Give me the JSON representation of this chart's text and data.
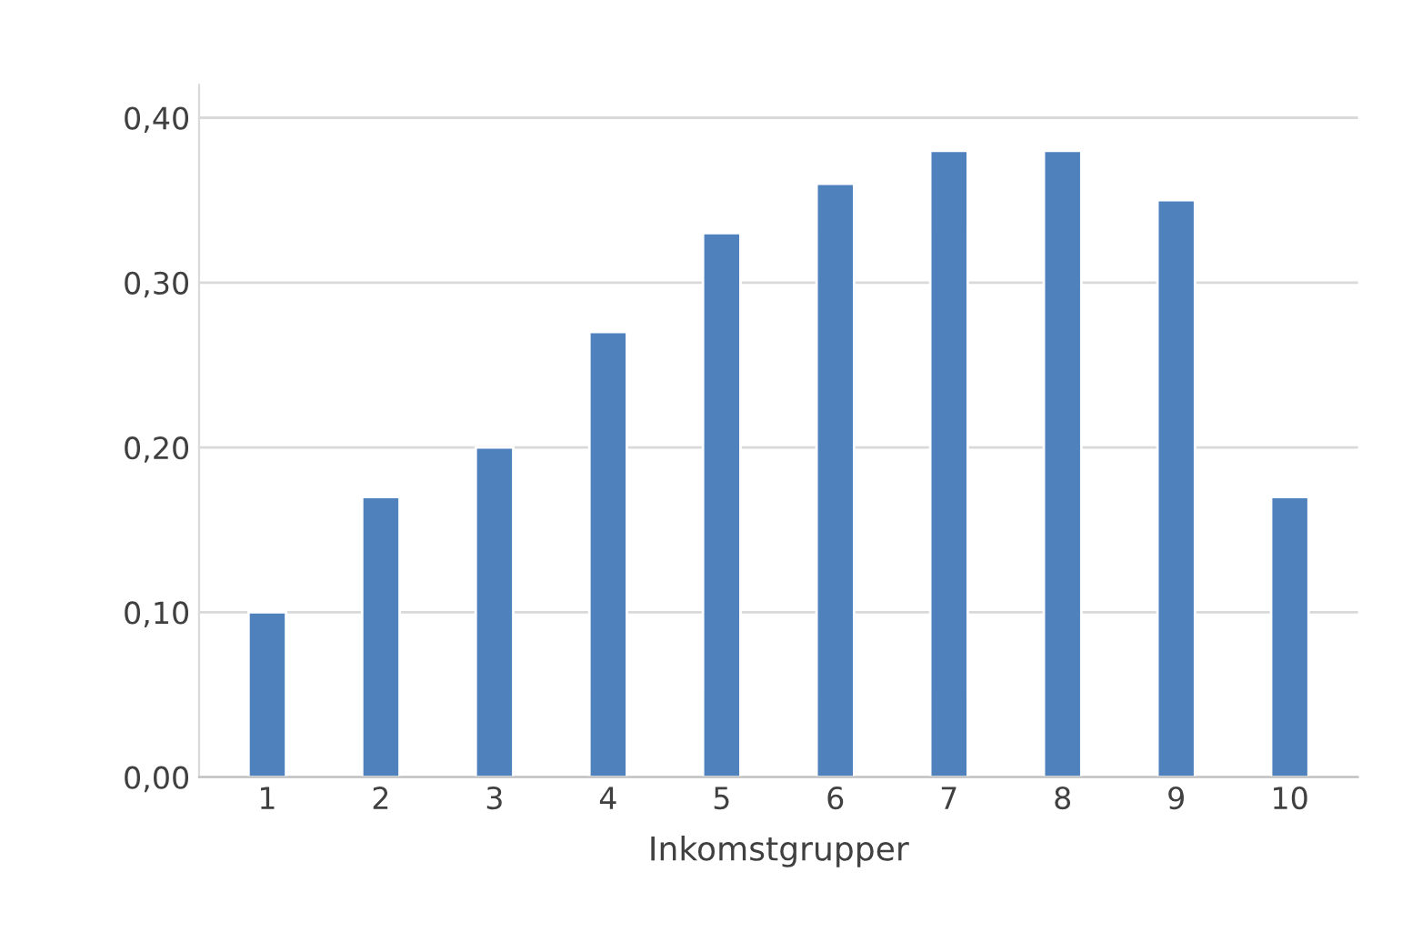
{
  "chart_data": {
    "type": "bar",
    "xlabel": "Inkomstgrupper",
    "categories": [
      "1",
      "2",
      "3",
      "4",
      "5",
      "6",
      "7",
      "8",
      "9",
      "10"
    ],
    "values": [
      0.1,
      0.17,
      0.2,
      0.27,
      0.33,
      0.36,
      0.38,
      0.38,
      0.35,
      0.17
    ],
    "color": "#4f81bd",
    "ylim": [
      0,
      0.42
    ],
    "yticks": [
      {
        "value": 0,
        "label": "0,00"
      },
      {
        "value": 0.1,
        "label": "0,10"
      },
      {
        "value": 0.2,
        "label": "0,20"
      },
      {
        "value": 0.3,
        "label": "0,30"
      },
      {
        "value": 0.4,
        "label": "0,40"
      }
    ],
    "grid": "y",
    "legend": false
  }
}
